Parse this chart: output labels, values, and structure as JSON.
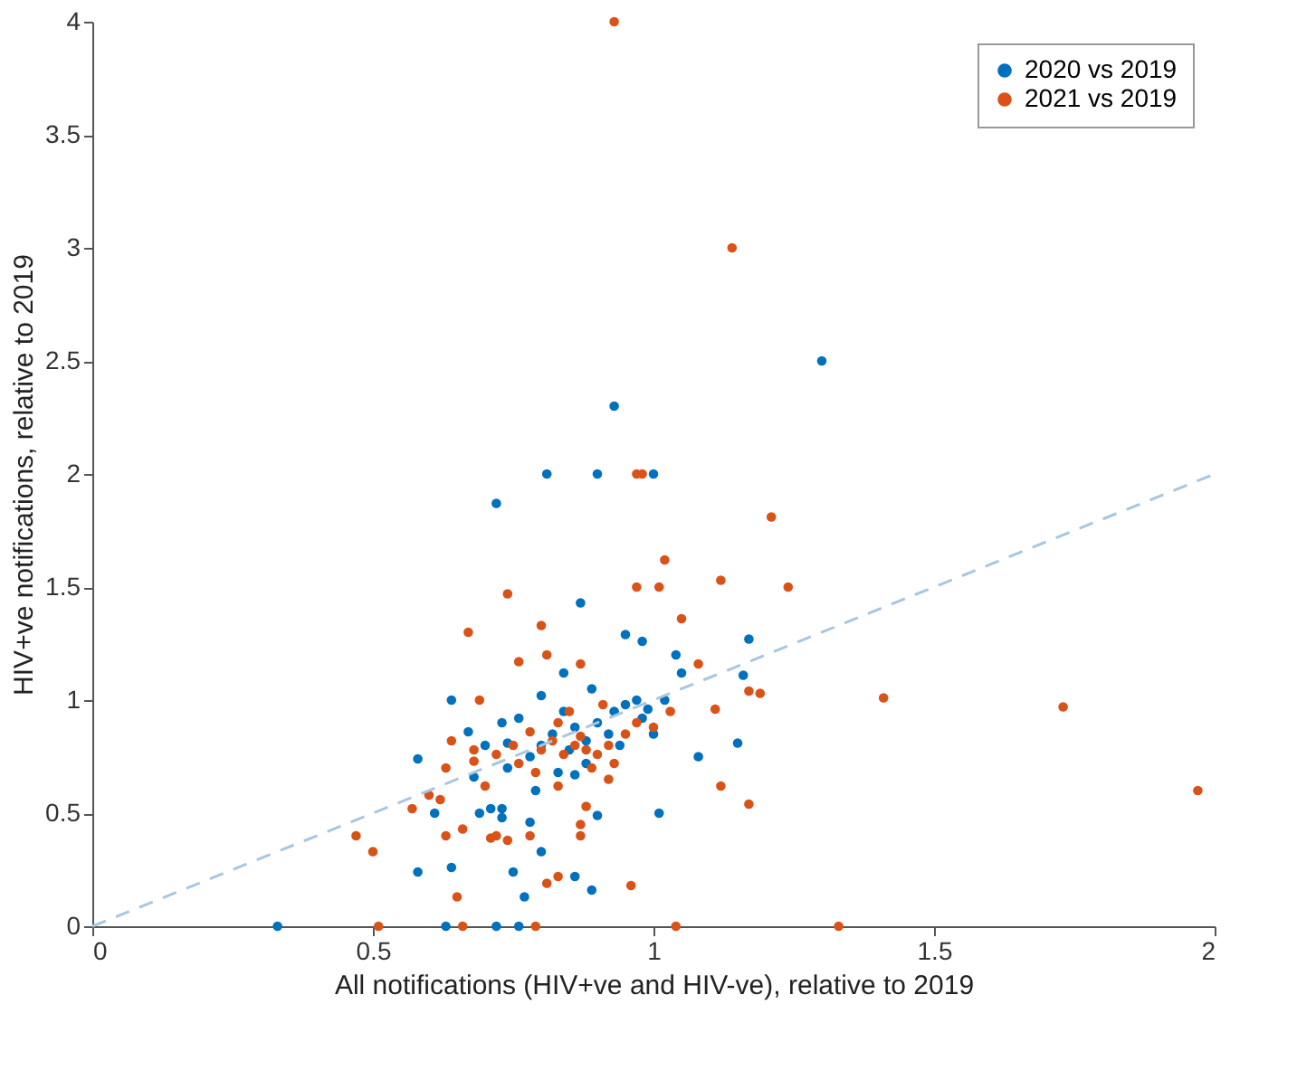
{
  "chart_data": {
    "type": "scatter",
    "xlabel": "All notifications (HIV+ve and HIV-ve), relative to 2019",
    "ylabel": "HIV+ve notifications, relative to 2019",
    "xlim": [
      0,
      2
    ],
    "xticks": [
      0,
      0.5,
      1,
      1.5,
      2
    ],
    "ylim": [
      0,
      4
    ],
    "yticks": [
      0,
      0.5,
      1,
      1.5,
      2,
      2.5,
      3,
      3.5,
      4
    ],
    "grid": false,
    "legend": "top right",
    "series": [
      {
        "name": "2020 vs 2019",
        "color": "#0072bd",
        "marker": "circle",
        "x": [
          0.93,
          0.81,
          0.9,
          1.0,
          0.72,
          0.87,
          0.95,
          0.98,
          1.17,
          1.04,
          1.05,
          1.16,
          0.84,
          1.3,
          0.33,
          0.63,
          0.72,
          0.76,
          0.58,
          0.64,
          0.58,
          0.61,
          0.64,
          0.67,
          0.74,
          0.68,
          0.69,
          0.73,
          0.75,
          0.77,
          0.86,
          0.89,
          0.8,
          1.01,
          1.15,
          1.08,
          0.71,
          0.73,
          0.78,
          0.9,
          0.79,
          0.86,
          0.8,
          0.82,
          0.85,
          0.88,
          0.9,
          0.93,
          0.95,
          0.97,
          0.98,
          0.86,
          0.78,
          0.76,
          0.84,
          0.92,
          0.99,
          1.02,
          0.88,
          0.74,
          0.83,
          0.7,
          0.94,
          1.0,
          0.89,
          0.8,
          0.73
        ],
        "values": [
          2.3,
          2.0,
          2.0,
          2.0,
          1.87,
          1.43,
          1.29,
          1.26,
          1.27,
          1.2,
          1.12,
          1.11,
          1.12,
          2.5,
          0,
          0,
          0,
          0,
          0.74,
          1.0,
          0.24,
          0.5,
          0.26,
          0.86,
          0.81,
          0.66,
          0.5,
          0.52,
          0.24,
          0.13,
          0.22,
          0.16,
          0.33,
          0.5,
          0.81,
          0.75,
          0.52,
          0.48,
          0.46,
          0.49,
          0.6,
          0.67,
          0.8,
          0.85,
          0.78,
          0.82,
          0.9,
          0.95,
          0.98,
          1.0,
          0.92,
          0.88,
          0.75,
          0.92,
          0.95,
          0.85,
          0.96,
          1.0,
          0.72,
          0.7,
          0.68,
          0.8,
          0.8,
          0.85,
          1.05,
          1.02,
          0.9
        ]
      },
      {
        "name": "2021 vs 2019",
        "color": "#d95319",
        "marker": "circle",
        "x": [
          0.93,
          1.14,
          0.97,
          0.98,
          1.21,
          1.02,
          0.74,
          0.97,
          1.01,
          1.12,
          1.24,
          0.8,
          1.05,
          0.81,
          1.08,
          0.76,
          0.87,
          1.41,
          1.73,
          1.97,
          0.67,
          0.51,
          0.66,
          0.79,
          1.04,
          1.33,
          0.47,
          0.5,
          0.65,
          0.57,
          0.6,
          0.69,
          0.64,
          0.68,
          0.63,
          0.63,
          0.66,
          0.72,
          0.62,
          0.81,
          0.83,
          0.96,
          1.17,
          1.12,
          1.11,
          1.17,
          1.19,
          0.71,
          0.74,
          0.78,
          0.87,
          0.88,
          0.87,
          0.83,
          0.92,
          0.8,
          0.82,
          0.84,
          0.86,
          0.87,
          0.88,
          0.9,
          0.92,
          0.83,
          0.78,
          0.76,
          0.75,
          0.95,
          0.97,
          0.93,
          0.89,
          0.72,
          0.7,
          0.79,
          0.85,
          1.0,
          1.03,
          0.91,
          0.68
        ],
        "values": [
          4.0,
          3.0,
          2.0,
          2.0,
          1.81,
          1.62,
          1.47,
          1.5,
          1.5,
          1.53,
          1.5,
          1.33,
          1.36,
          1.2,
          1.16,
          1.17,
          1.16,
          1.01,
          0.97,
          0.6,
          1.3,
          0,
          0,
          0,
          0,
          0,
          0.4,
          0.33,
          0.13,
          0.52,
          0.58,
          1.0,
          0.82,
          0.73,
          0.7,
          0.4,
          0.43,
          0.4,
          0.56,
          0.19,
          0.22,
          0.18,
          0.54,
          0.62,
          0.96,
          1.04,
          1.03,
          0.39,
          0.38,
          0.4,
          0.45,
          0.53,
          0.4,
          0.62,
          0.65,
          0.78,
          0.82,
          0.76,
          0.8,
          0.84,
          0.78,
          0.76,
          0.8,
          0.9,
          0.86,
          0.72,
          0.8,
          0.85,
          0.9,
          0.72,
          0.7,
          0.76,
          0.62,
          0.68,
          0.95,
          0.88,
          0.95,
          0.98,
          0.78
        ]
      },
      {
        "type": "line",
        "color": "#a9c6df",
        "line_style": "dashed",
        "x": [
          0,
          2
        ],
        "values": [
          0,
          2
        ]
      }
    ]
  }
}
